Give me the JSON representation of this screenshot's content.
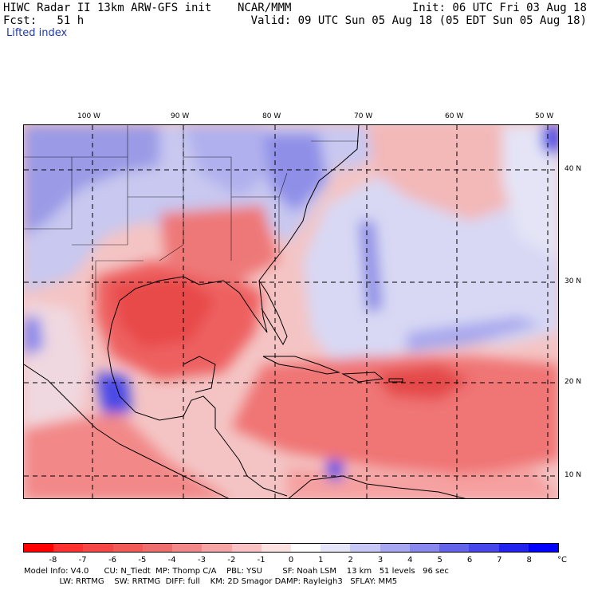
{
  "header": {
    "left_line1": "HIWC Radar II 13km ARW-GFS init",
    "center_line1": "NCAR/MMM",
    "right_line1": "Init: 06 UTC Fri 03 Aug 18",
    "left_line2": "Fcst:   51 h",
    "right_line2": "Valid: 09 UTC Sun 05 Aug 18 (05 EDT Sun 05 Aug 18)",
    "field_name": "Lifted index"
  },
  "map": {
    "longitude_labels": [
      "100 W",
      "90 W",
      "80 W",
      "70 W",
      "60 W",
      "50 W"
    ],
    "latitude_labels": [
      "40 N",
      "30 N",
      "20 N",
      "10 N"
    ]
  },
  "legend": {
    "values": [
      "-8",
      "-7",
      "-6",
      "-5",
      "-4",
      "-3",
      "-2",
      "-1",
      "0",
      "1",
      "2",
      "3",
      "4",
      "5",
      "6",
      "7",
      "8"
    ],
    "unit": "°C",
    "colors": [
      "#ff0000",
      "#ff3030",
      "#f64646",
      "#f25a5a",
      "#ee6e6e",
      "#f28888",
      "#f6a4a4",
      "#fac2c2",
      "#fde2e2",
      "#ffffff",
      "#e6e6fa",
      "#c8c8f6",
      "#a8a8f2",
      "#8888ee",
      "#6464ea",
      "#4646ea",
      "#2222ee",
      "#0000ff"
    ]
  },
  "model_info": {
    "line1": "Model Info: V4.0      CU: N_Tiedt  MP: Thomp C/A    PBL: YSU        SF: Noah LSM    13 km   51 levels   96 sec",
    "line2": "              LW: RRTMG    SW: RRTMG  DIFF: full    KM: 2D Smagor DAMP: Rayleigh3   SFLAY: MM5"
  }
}
